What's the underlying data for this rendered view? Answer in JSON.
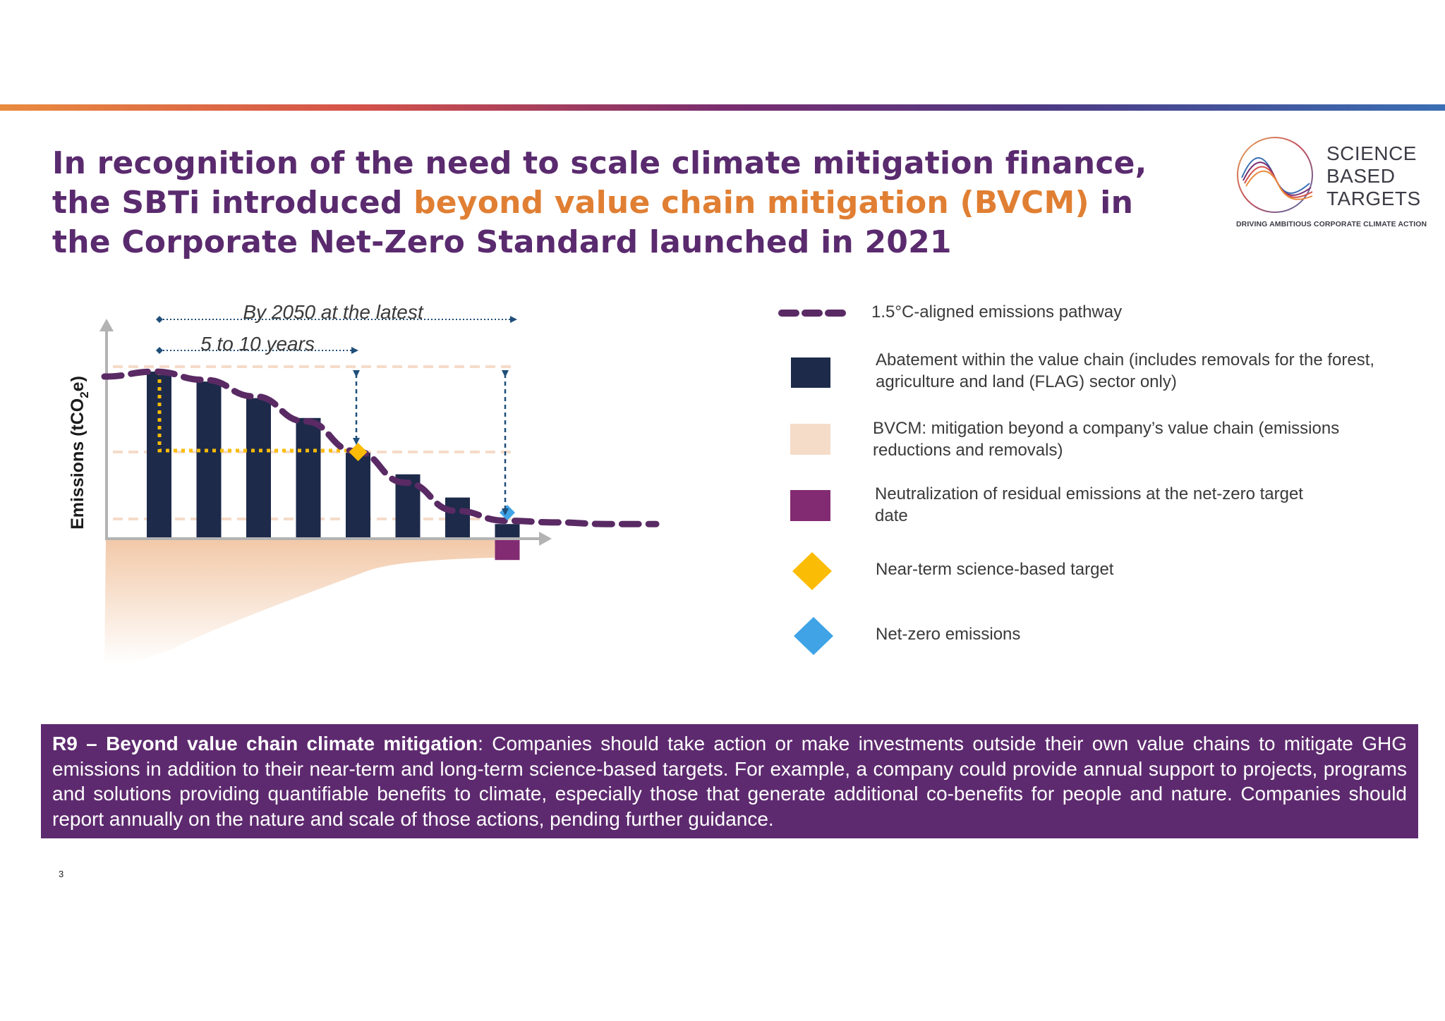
{
  "title": {
    "part1": "In recognition of the need to scale climate mitigation finance, the SBTi introduced ",
    "highlight": "beyond value chain mitigation (BVCM)",
    "part2": " in the Corporate Net-Zero Standard launched in 2021"
  },
  "logo": {
    "line1": "SCIENCE",
    "line2": "BASED",
    "line3": "TARGETS",
    "tagline": "DRIVING AMBITIOUS CORPORATE CLIMATE ACTION"
  },
  "diagram": {
    "y_axis_label": "Emissions (tCO",
    "y_axis_sub": "2",
    "y_axis_suffix": "e)",
    "span_long_label": "By 2050 at the latest",
    "span_short_label": "5 to 10 years"
  },
  "chart_data": {
    "type": "bar",
    "title": "",
    "xlabel": "",
    "ylabel": "Emissions (tCO2e)",
    "bars_relative": [
      1.0,
      0.94,
      0.84,
      0.72,
      0.51,
      0.38,
      0.24,
      0.08
    ],
    "neutralization_relative": 0.12,
    "pathway_relative": [
      0.97,
      1.0,
      0.95,
      0.85,
      0.7,
      0.52,
      0.33,
      0.16,
      0.1,
      0.09,
      0.08,
      0.08
    ],
    "near_term_target_bar_index": 4,
    "net_zero_bar_index": 7
  },
  "legend": {
    "items": [
      {
        "label": "1.5°C-aligned emissions pathway",
        "symbol": "dashed-line",
        "color": "#5a2a64"
      },
      {
        "label_line1": "Abatement within the value chain (includes removals for the forest,",
        "label_line2": "agriculture and land (FLAG) sector only)",
        "symbol": "square",
        "color": "#1d2a4a"
      },
      {
        "label_line1": "BVCM: mitigation beyond a company’s value chain (emissions",
        "label_line2": "reductions and removals)",
        "symbol": "square",
        "color": "#f5dcc9"
      },
      {
        "label_line1": "Neutralization of residual emissions at the net-zero target",
        "label_line2": "date",
        "symbol": "square",
        "color": "#822b72"
      },
      {
        "label": "Near-term science-based target",
        "symbol": "diamond",
        "color": "#fbbc05"
      },
      {
        "label": "Net-zero emissions",
        "symbol": "diamond",
        "color": "#3fa3e6"
      }
    ]
  },
  "recommendation": {
    "heading": "R9 – Beyond value chain climate mitigation",
    "body": ": Companies should take action or make investments outside their own value chains to mitigate GHG emissions in addition to their near-term and long-term science-based targets. For example, a company could provide annual support to projects, programs and solutions providing quantifiable benefits to climate, especially those that generate additional co-benefits for people and nature. Companies should report annually on the nature and scale of those actions, pending further guidance."
  },
  "page_number": "3"
}
